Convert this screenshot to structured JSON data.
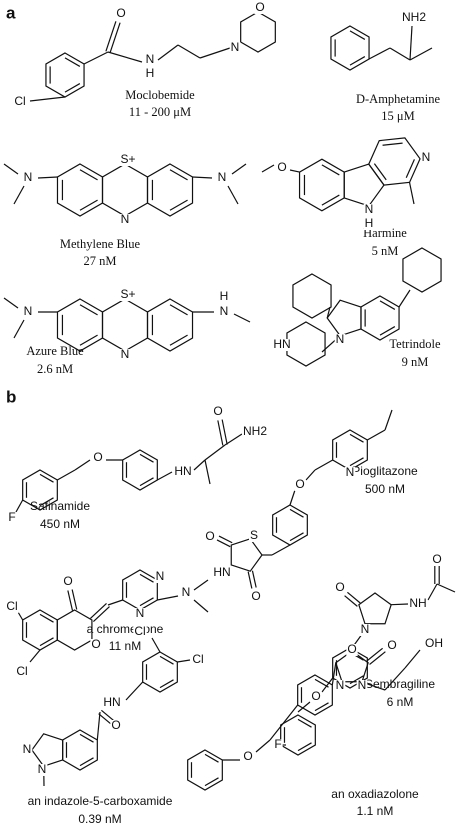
{
  "panels": [
    {
      "label": "a",
      "compounds": [
        {
          "name": "Moclobemide",
          "potency": "11 - 200 μM",
          "atoms": [
            "O",
            "N",
            "H",
            "N",
            "O",
            "Cl"
          ]
        },
        {
          "name": "D-Amphetamine",
          "potency": "15  μM",
          "atoms": [
            "NH2"
          ]
        },
        {
          "name": "Methylene Blue",
          "potency": "27 nM",
          "atoms": [
            "S+",
            "N",
            "N",
            "N"
          ]
        },
        {
          "name": "Harmine",
          "potency": "5 nM",
          "atoms": [
            "O",
            "N",
            "N",
            "H"
          ]
        },
        {
          "name": "Azure Blue",
          "potency": "2.6 nM",
          "atoms": [
            "S+",
            "N",
            "N",
            "N",
            "H"
          ]
        },
        {
          "name": "Tetrindole",
          "potency": "9 nM",
          "atoms": [
            "N",
            "HN"
          ]
        }
      ]
    },
    {
      "label": "b",
      "compounds": [
        {
          "name": "Safinamide",
          "potency": "450 nM",
          "atoms": [
            "O",
            "HN",
            "O",
            "NH2",
            "F"
          ]
        },
        {
          "name": "Pioglitazone",
          "potency": "500 nM",
          "atoms": [
            "N",
            "O",
            "S",
            "HN",
            "O",
            "O"
          ]
        },
        {
          "name": "a chromenone",
          "potency": "11 nM",
          "atoms": [
            "O",
            "O",
            "N",
            "N",
            "N",
            "Cl",
            "Cl"
          ]
        },
        {
          "name": "Sembragiline",
          "potency": "6 nM",
          "atoms": [
            "O",
            "N",
            "NH",
            "O",
            "O",
            "F"
          ]
        },
        {
          "name": "an indazole-5-carboxamide",
          "potency": "0.39 nM",
          "atoms": [
            "Cl",
            "Cl",
            "HN",
            "O",
            "N",
            "N"
          ]
        },
        {
          "name": "an oxadiazolone",
          "potency": "1.1 nM",
          "atoms": [
            "O",
            "O",
            "N",
            "N",
            "OH",
            "O"
          ]
        }
      ]
    }
  ]
}
